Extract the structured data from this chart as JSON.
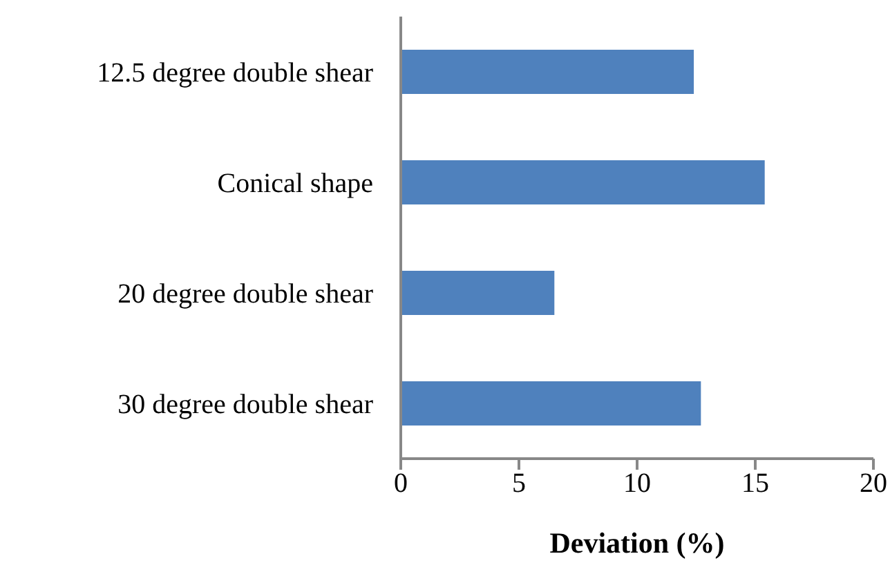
{
  "chart_data": {
    "type": "bar",
    "orientation": "horizontal",
    "xlabel": "Deviation (%)",
    "categories": [
      "12.5 degree double shear",
      "Conical shape",
      "20 degree double shear",
      "30 degree double shear"
    ],
    "values": [
      12.4,
      15.4,
      6.5,
      12.7
    ],
    "color": "#4f81bd",
    "xlim": [
      0,
      20
    ],
    "xticks": [
      0,
      5,
      10,
      15,
      20
    ],
    "grid": false,
    "legend": false
  }
}
